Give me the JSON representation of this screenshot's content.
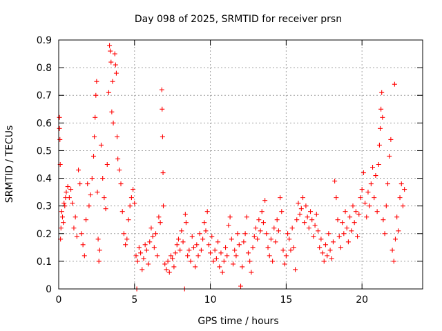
{
  "chart_data": {
    "type": "scatter",
    "title": "Day 098 of 2025, SRMTID for receiver prsn",
    "xlabel": "GPS time / hours",
    "ylabel": "SRMTID / TECUs",
    "xlim": [
      0,
      24
    ],
    "ylim": [
      0,
      0.9
    ],
    "xticks": [
      "0",
      "5",
      "10",
      "15",
      "20"
    ],
    "xtick_values": [
      0,
      5,
      10,
      15,
      20
    ],
    "yticks": [
      "0",
      "0.1",
      "0.2",
      "0.3",
      "0.4",
      "0.5",
      "0.6",
      "0.7",
      "0.8",
      "0.9"
    ],
    "ytick_values": [
      0,
      0.1,
      0.2,
      0.3,
      0.4,
      0.5,
      0.6,
      0.7,
      0.8,
      0.9
    ],
    "grid": true,
    "marker": "+",
    "color": "#ff0000",
    "series": [
      {
        "name": "SRMTID",
        "points": [
          [
            0.05,
            0.62
          ],
          [
            0.05,
            0.58
          ],
          [
            0.08,
            0.54
          ],
          [
            0.1,
            0.45
          ],
          [
            0.12,
            0.18
          ],
          [
            0.15,
            0.22
          ],
          [
            0.2,
            0.28
          ],
          [
            0.25,
            0.26
          ],
          [
            0.3,
            0.24
          ],
          [
            0.35,
            0.31
          ],
          [
            0.4,
            0.3
          ],
          [
            0.45,
            0.33
          ],
          [
            0.5,
            0.35
          ],
          [
            0.6,
            0.37
          ],
          [
            0.7,
            0.33
          ],
          [
            0.8,
            0.36
          ],
          [
            0.9,
            0.31
          ],
          [
            1.0,
            0.22
          ],
          [
            1.1,
            0.26
          ],
          [
            1.2,
            0.19
          ],
          [
            1.3,
            0.43
          ],
          [
            1.4,
            0.38
          ],
          [
            1.5,
            0.2
          ],
          [
            1.6,
            0.16
          ],
          [
            1.7,
            0.12
          ],
          [
            1.8,
            0.25
          ],
          [
            1.9,
            0.38
          ],
          [
            2.0,
            0.3
          ],
          [
            2.1,
            0.34
          ],
          [
            2.2,
            0.4
          ],
          [
            2.3,
            0.48
          ],
          [
            2.35,
            0.55
          ],
          [
            2.4,
            0.62
          ],
          [
            2.45,
            0.7
          ],
          [
            2.5,
            0.75
          ],
          [
            2.55,
            0.35
          ],
          [
            2.6,
            0.18
          ],
          [
            2.65,
            0.1
          ],
          [
            2.7,
            0.14
          ],
          [
            2.8,
            0.52
          ],
          [
            2.9,
            0.4
          ],
          [
            3.0,
            0.33
          ],
          [
            3.1,
            0.29
          ],
          [
            3.2,
            0.45
          ],
          [
            3.3,
            0.71
          ],
          [
            3.35,
            0.88
          ],
          [
            3.4,
            0.86
          ],
          [
            3.45,
            0.82
          ],
          [
            3.5,
            0.64
          ],
          [
            3.55,
            0.75
          ],
          [
            3.6,
            0.6
          ],
          [
            3.7,
            0.85
          ],
          [
            3.75,
            0.81
          ],
          [
            3.8,
            0.78
          ],
          [
            3.85,
            0.55
          ],
          [
            3.9,
            0.47
          ],
          [
            4.0,
            0.43
          ],
          [
            4.1,
            0.38
          ],
          [
            4.2,
            0.28
          ],
          [
            4.3,
            0.2
          ],
          [
            4.4,
            0.16
          ],
          [
            4.5,
            0.18
          ],
          [
            4.6,
            0.25
          ],
          [
            4.7,
            0.3
          ],
          [
            4.8,
            0.33
          ],
          [
            4.9,
            0.36
          ],
          [
            5.0,
            0.31
          ],
          [
            5.1,
            0.12
          ],
          [
            5.15,
            0.0
          ],
          [
            5.2,
            0.1
          ],
          [
            5.3,
            0.15
          ],
          [
            5.4,
            0.13
          ],
          [
            5.5,
            0.07
          ],
          [
            5.6,
            0.11
          ],
          [
            5.7,
            0.16
          ],
          [
            5.8,
            0.14
          ],
          [
            5.9,
            0.09
          ],
          [
            6.0,
            0.17
          ],
          [
            6.1,
            0.22
          ],
          [
            6.2,
            0.19
          ],
          [
            6.3,
            0.15
          ],
          [
            6.4,
            0.2
          ],
          [
            6.5,
            0.12
          ],
          [
            6.6,
            0.26
          ],
          [
            6.7,
            0.24
          ],
          [
            6.8,
            0.72
          ],
          [
            6.82,
            0.65
          ],
          [
            6.85,
            0.55
          ],
          [
            6.88,
            0.42
          ],
          [
            6.9,
            0.3
          ],
          [
            7.0,
            0.09
          ],
          [
            7.1,
            0.07
          ],
          [
            7.2,
            0.1
          ],
          [
            7.3,
            0.06
          ],
          [
            7.4,
            0.12
          ],
          [
            7.5,
            0.11
          ],
          [
            7.6,
            0.08
          ],
          [
            7.7,
            0.13
          ],
          [
            7.8,
            0.16
          ],
          [
            7.9,
            0.18
          ],
          [
            8.0,
            0.14
          ],
          [
            8.1,
            0.21
          ],
          [
            8.2,
            0.17
          ],
          [
            8.3,
            0.0
          ],
          [
            8.35,
            0.27
          ],
          [
            8.4,
            0.24
          ],
          [
            8.5,
            0.12
          ],
          [
            8.6,
            0.14
          ],
          [
            8.7,
            0.1
          ],
          [
            8.8,
            0.19
          ],
          [
            8.9,
            0.15
          ],
          [
            9.0,
            0.08
          ],
          [
            9.1,
            0.16
          ],
          [
            9.2,
            0.12
          ],
          [
            9.3,
            0.2
          ],
          [
            9.4,
            0.14
          ],
          [
            9.5,
            0.18
          ],
          [
            9.6,
            0.24
          ],
          [
            9.7,
            0.21
          ],
          [
            9.8,
            0.28
          ],
          [
            9.9,
            0.16
          ],
          [
            10.0,
            0.13
          ],
          [
            10.1,
            0.19
          ],
          [
            10.2,
            0.1
          ],
          [
            10.3,
            0.14
          ],
          [
            10.4,
            0.11
          ],
          [
            10.5,
            0.17
          ],
          [
            10.6,
            0.08
          ],
          [
            10.7,
            0.13
          ],
          [
            10.8,
            0.06
          ],
          [
            10.9,
            0.1
          ],
          [
            11.0,
            0.15
          ],
          [
            11.1,
            0.12
          ],
          [
            11.2,
            0.23
          ],
          [
            11.3,
            0.26
          ],
          [
            11.4,
            0.18
          ],
          [
            11.5,
            0.09
          ],
          [
            11.6,
            0.14
          ],
          [
            11.7,
            0.12
          ],
          [
            11.8,
            0.2
          ],
          [
            11.9,
            0.16
          ],
          [
            12.0,
            0.01
          ],
          [
            12.1,
            0.08
          ],
          [
            12.2,
            0.17
          ],
          [
            12.3,
            0.2
          ],
          [
            12.4,
            0.26
          ],
          [
            12.5,
            0.13
          ],
          [
            12.6,
            0.1
          ],
          [
            12.7,
            0.06
          ],
          [
            12.8,
            0.15
          ],
          [
            12.9,
            0.19
          ],
          [
            13.0,
            0.22
          ],
          [
            13.1,
            0.18
          ],
          [
            13.2,
            0.25
          ],
          [
            13.3,
            0.21
          ],
          [
            13.4,
            0.28
          ],
          [
            13.5,
            0.24
          ],
          [
            13.6,
            0.32
          ],
          [
            13.7,
            0.2
          ],
          [
            13.8,
            0.15
          ],
          [
            13.9,
            0.12
          ],
          [
            14.0,
            0.18
          ],
          [
            14.1,
            0.1
          ],
          [
            14.2,
            0.22
          ],
          [
            14.3,
            0.17
          ],
          [
            14.4,
            0.25
          ],
          [
            14.5,
            0.21
          ],
          [
            14.6,
            0.33
          ],
          [
            14.7,
            0.28
          ],
          [
            14.8,
            0.14
          ],
          [
            14.9,
            0.09
          ],
          [
            15.0,
            0.12
          ],
          [
            15.1,
            0.2
          ],
          [
            15.2,
            0.18
          ],
          [
            15.3,
            0.14
          ],
          [
            15.4,
            0.22
          ],
          [
            15.5,
            0.15
          ],
          [
            15.6,
            0.07
          ],
          [
            15.7,
            0.25
          ],
          [
            15.8,
            0.31
          ],
          [
            15.9,
            0.27
          ],
          [
            16.0,
            0.29
          ],
          [
            16.1,
            0.33
          ],
          [
            16.2,
            0.24
          ],
          [
            16.3,
            0.3
          ],
          [
            16.4,
            0.26
          ],
          [
            16.5,
            0.22
          ],
          [
            16.6,
            0.28
          ],
          [
            16.7,
            0.25
          ],
          [
            16.8,
            0.19
          ],
          [
            16.9,
            0.23
          ],
          [
            17.0,
            0.27
          ],
          [
            17.1,
            0.21
          ],
          [
            17.2,
            0.15
          ],
          [
            17.3,
            0.18
          ],
          [
            17.4,
            0.13
          ],
          [
            17.5,
            0.1
          ],
          [
            17.6,
            0.16
          ],
          [
            17.7,
            0.12
          ],
          [
            17.8,
            0.2
          ],
          [
            17.9,
            0.14
          ],
          [
            18.0,
            0.11
          ],
          [
            18.1,
            0.17
          ],
          [
            18.2,
            0.39
          ],
          [
            18.3,
            0.33
          ],
          [
            18.4,
            0.25
          ],
          [
            18.5,
            0.19
          ],
          [
            18.6,
            0.15
          ],
          [
            18.7,
            0.24
          ],
          [
            18.8,
            0.2
          ],
          [
            18.9,
            0.28
          ],
          [
            19.0,
            0.22
          ],
          [
            19.1,
            0.17
          ],
          [
            19.2,
            0.26
          ],
          [
            19.3,
            0.21
          ],
          [
            19.4,
            0.3
          ],
          [
            19.5,
            0.24
          ],
          [
            19.6,
            0.28
          ],
          [
            19.7,
            0.19
          ],
          [
            19.8,
            0.27
          ],
          [
            19.9,
            0.33
          ],
          [
            20.0,
            0.36
          ],
          [
            20.1,
            0.42
          ],
          [
            20.2,
            0.31
          ],
          [
            20.3,
            0.26
          ],
          [
            20.4,
            0.35
          ],
          [
            20.5,
            0.3
          ],
          [
            20.6,
            0.38
          ],
          [
            20.7,
            0.44
          ],
          [
            20.8,
            0.33
          ],
          [
            20.9,
            0.41
          ],
          [
            21.0,
            0.28
          ],
          [
            21.1,
            0.45
          ],
          [
            21.15,
            0.52
          ],
          [
            21.2,
            0.58
          ],
          [
            21.25,
            0.65
          ],
          [
            21.3,
            0.71
          ],
          [
            21.35,
            0.62
          ],
          [
            21.4,
            0.25
          ],
          [
            21.5,
            0.2
          ],
          [
            21.6,
            0.3
          ],
          [
            21.7,
            0.38
          ],
          [
            21.8,
            0.48
          ],
          [
            21.9,
            0.54
          ],
          [
            22.0,
            0.14
          ],
          [
            22.1,
            0.1
          ],
          [
            22.15,
            0.74
          ],
          [
            22.2,
            0.18
          ],
          [
            22.3,
            0.26
          ],
          [
            22.4,
            0.21
          ],
          [
            22.5,
            0.33
          ],
          [
            22.6,
            0.38
          ],
          [
            22.7,
            0.3
          ],
          [
            22.8,
            0.36
          ]
        ]
      }
    ]
  }
}
